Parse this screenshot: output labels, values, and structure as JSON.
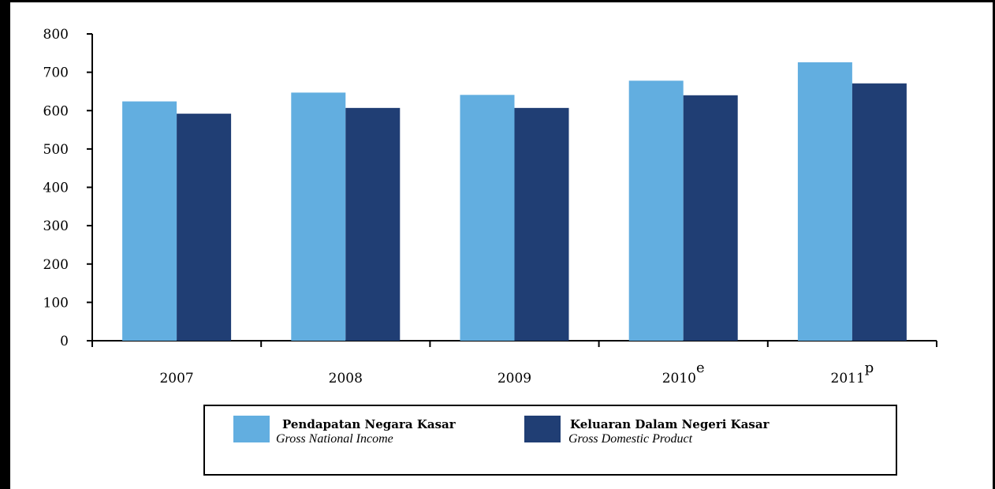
{
  "chart_data": {
    "type": "bar",
    "categories": [
      "2007",
      "2008",
      "2009",
      "2010",
      "2011"
    ],
    "category_superscripts": [
      "",
      "",
      "",
      "e",
      "p"
    ],
    "series": [
      {
        "name": "Pendapatan Negara Kasar",
        "name_en": "Gross National Income",
        "values": [
          624,
          647,
          641,
          678,
          726
        ],
        "color": "#62aee0"
      },
      {
        "name": "Keluaran Dalam Negeri Kasar",
        "name_en": "Gross Domestic Product",
        "values": [
          592,
          607,
          607,
          640,
          671
        ],
        "color": "#203e74"
      }
    ],
    "ylim": [
      0,
      800
    ],
    "yticks": [
      "0",
      "100",
      "200",
      "300",
      "400",
      "500",
      "600",
      "700",
      "800"
    ],
    "grid": false,
    "legend_position": "bottom"
  },
  "legend": {
    "items": [
      {
        "label": "Pendapatan Negara Kasar",
        "sublabel": "Gross National Income",
        "color": "#62aee0"
      },
      {
        "label": "Keluaran Dalam Negeri Kasar",
        "sublabel": "Gross Domestic Product",
        "color": "#203e74"
      }
    ]
  }
}
